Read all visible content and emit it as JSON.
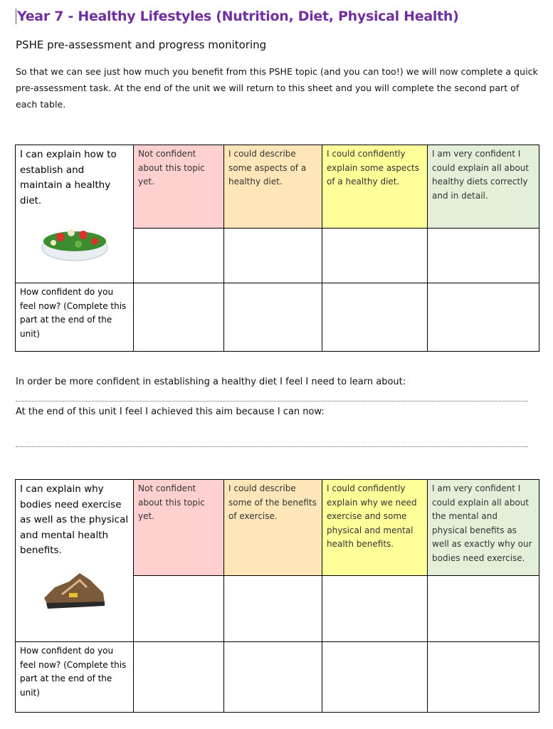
{
  "title": "Year 7 - Healthy Lifestyles (Nutrition, Diet, Physical Health)",
  "subtitle": "PSHE pre-assessment and progress monitoring",
  "intro": "So that we can see just how much you benefit from this PSHE topic (and you can too!) we will now complete a quick pre-assessment task. At the end of the unit we will return to this sheet and you will complete the second part of each table.",
  "colors": {
    "title": "#7030a0",
    "not_confident": "#ffd0d0",
    "describe": "#ffe6b8",
    "confidently": "#ffff99",
    "very_confident": "#e3efd9"
  },
  "table1": {
    "statement": "I can explain how to establish and maintain a healthy diet.",
    "image": "salad-bowl",
    "levels": [
      "Not confident about this topic yet.",
      "I could describe some aspects of a healthy diet.",
      "I could confidently explain some aspects of a healthy diet.",
      "I am very confident I could explain all about healthy diets correctly and in detail."
    ],
    "question": "How confident do you feel now? (Complete this part at the end of the unit)"
  },
  "prompt1": "In order be more confident in establishing a healthy diet I feel I need to learn about:",
  "prompt2": "At the end of this unit I feel I achieved this aim because I can now:",
  "table2": {
    "statement": "I can explain why bodies need exercise as well as the physical and mental health benefits.",
    "image": "trainers-shoes",
    "levels": [
      "Not confident about this topic yet.",
      "I could describe some of the benefits of exercise.",
      "I could confidently explain why we need exercise and some physical and mental health benefits.",
      "I am very confident I could explain all about the mental and physical benefits as well as exactly why our bodies need exercise."
    ],
    "question": "How confident do you feel now? (Complete this part at the end of the unit)"
  }
}
